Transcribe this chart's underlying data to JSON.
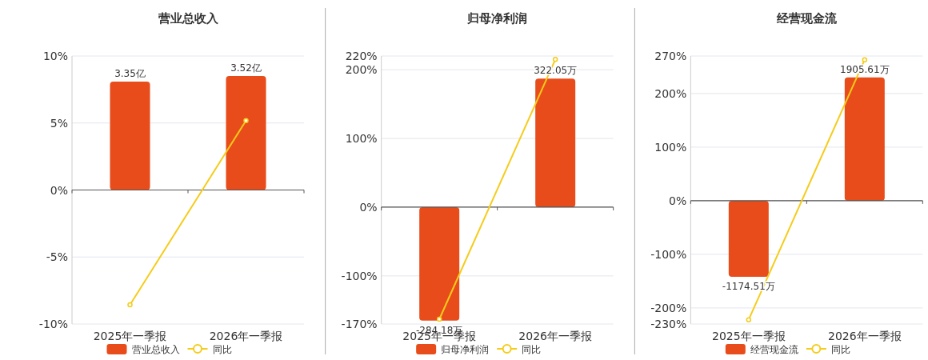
{
  "chart_data": [
    {
      "type": "bar",
      "title": "营业总收入",
      "categories": [
        "2025年一季报",
        "2026年一季报"
      ],
      "series": [
        {
          "name": "营业总收入",
          "axis": "y2",
          "color": "#e84c1b",
          "values": [
            3.35,
            3.52
          ],
          "value_labels": [
            "3.35亿",
            "3.52亿"
          ]
        },
        {
          "name": "同比",
          "type": "line",
          "color": "#f5cc1a",
          "values": [
            -8.57,
            5.18
          ]
        }
      ],
      "ylim": [
        -10,
        10
      ],
      "yticks": [
        {
          "value": -10,
          "label": "-10%"
        },
        {
          "value": -5,
          "label": "-5%"
        },
        {
          "value": 0,
          "label": "0%"
        },
        {
          "value": 5,
          "label": "5%"
        },
        {
          "value": 10,
          "label": "10%"
        }
      ],
      "y2lim": [
        -4.14,
        4.14
      ],
      "grid": "y",
      "legend": "bottom",
      "marker": "circle"
    },
    {
      "type": "bar",
      "title": "归母净利润",
      "categories": [
        "2025年一季报",
        "2026年一季报"
      ],
      "series": [
        {
          "name": "归母净利润",
          "axis": "y2",
          "color": "#e84c1b",
          "values": [
            -284.18,
            322.05
          ],
          "value_labels": [
            "-284.18万",
            "322.05万"
          ]
        },
        {
          "name": "同比",
          "type": "line",
          "color": "#f5cc1a",
          "values": [
            -163,
            215
          ]
        }
      ],
      "ylim": [
        -170,
        220
      ],
      "yticks": [
        {
          "value": -170,
          "label": "-170%"
        },
        {
          "value": -100,
          "label": "-100%"
        },
        {
          "value": 0,
          "label": "0%"
        },
        {
          "value": 100,
          "label": "100%"
        },
        {
          "value": 200,
          "label": "200%"
        },
        {
          "value": 220,
          "label": "220%"
        }
      ],
      "y2lim": [
        -292.8,
        378.9
      ],
      "grid": "y",
      "legend": "bottom",
      "marker": "circle"
    },
    {
      "type": "bar",
      "title": "经营现金流",
      "categories": [
        "2025年一季报",
        "2026年一季报"
      ],
      "series": [
        {
          "name": "经营现金流",
          "axis": "y2",
          "color": "#e84c1b",
          "values": [
            -1174.51,
            1905.61
          ],
          "value_labels": [
            "-1174.51万",
            "1905.61万"
          ]
        },
        {
          "name": "同比",
          "type": "line",
          "color": "#f5cc1a",
          "values": [
            -222,
            263
          ]
        }
      ],
      "ylim": [
        -230,
        270
      ],
      "yticks": [
        {
          "value": -230,
          "label": "-230%"
        },
        {
          "value": -200,
          "label": "-200%"
        },
        {
          "value": -100,
          "label": "-100%"
        },
        {
          "value": 0,
          "label": "0%"
        },
        {
          "value": 100,
          "label": "100%"
        },
        {
          "value": 200,
          "label": "200%"
        },
        {
          "value": 270,
          "label": "270%"
        }
      ],
      "y2lim": [
        -1905.6,
        2237
      ],
      "grid": "y",
      "legend": "bottom",
      "marker": "circle"
    }
  ]
}
